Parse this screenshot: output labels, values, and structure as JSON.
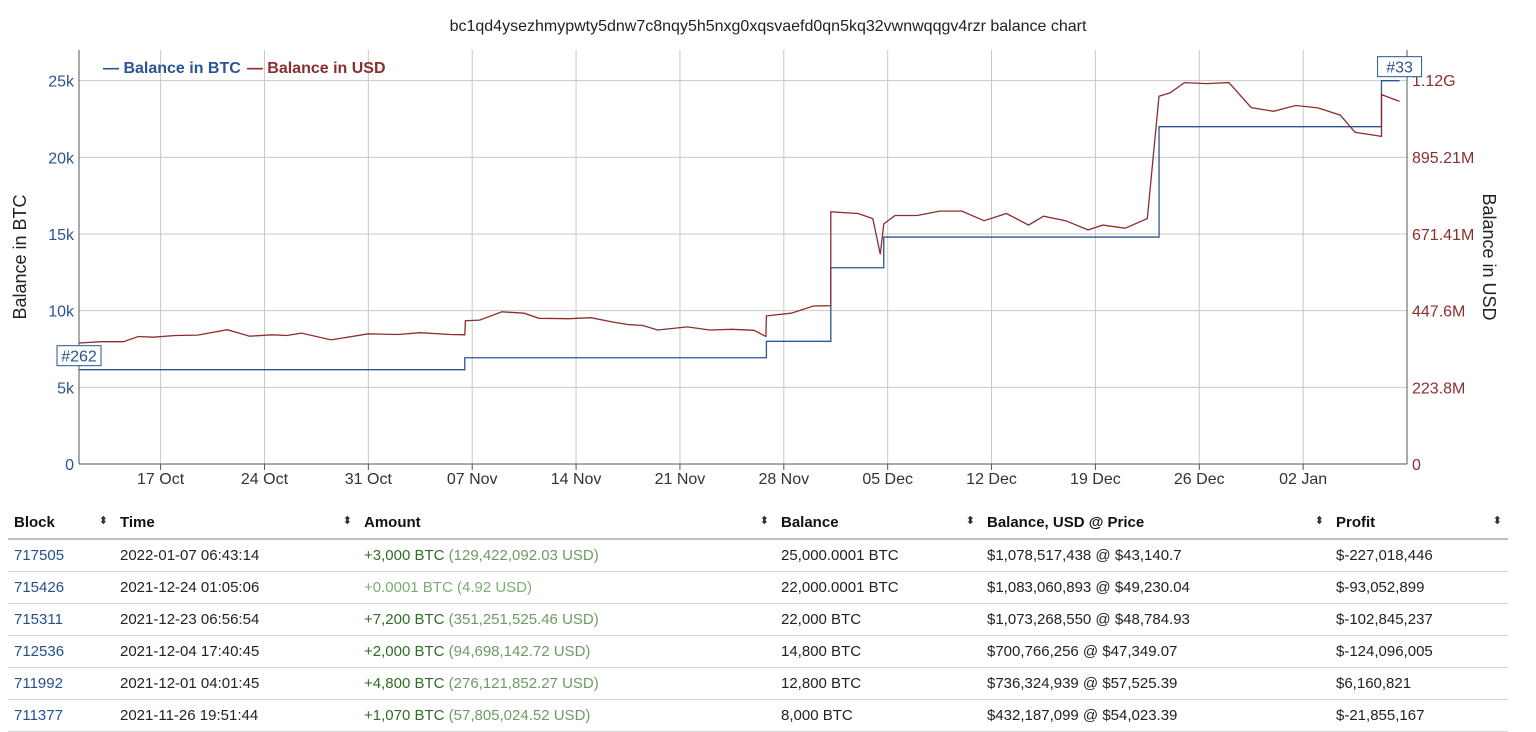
{
  "header": {
    "title": "bc1qd4ysezhmypwty5dnw7c8nqy5h5nxg0xqsvaefd0qn5kq32vwnwqqgv4rzr balance chart"
  },
  "chart_data": {
    "type": "line",
    "title": "bc1qd4ysezhmypwty5dnw7c8nqy5h5nxg0xqsvaefd0qn5kq32vwnwqqgv4rzr balance chart",
    "ylabel": "Balance in BTC",
    "y2label": "Balance in USD",
    "legend_position": "top-left",
    "grid": true,
    "ylim": [
      0,
      27000
    ],
    "y2lim": [
      0,
      1208000000
    ],
    "yticks": [
      "0",
      "5k",
      "10k",
      "15k",
      "20k",
      "25k"
    ],
    "y2ticks": [
      "0",
      "223.8M",
      "447.6M",
      "671.41M",
      "895.21M",
      "1.12G"
    ],
    "xticks": [
      "17 Oct",
      "24 Oct",
      "31 Oct",
      "07 Nov",
      "14 Nov",
      "21 Nov",
      "28 Nov",
      "05 Dec",
      "12 Dec",
      "19 Dec",
      "26 Dec",
      "02 Jan"
    ],
    "xlim": [
      "2021-10-11T12:00",
      "2022-01-09T00:00"
    ],
    "colors": {
      "btc": "#2b5592",
      "usd": "#8b2e2e",
      "grid": "#c8c8c8"
    },
    "series": [
      {
        "name": "Balance in BTC",
        "axis": "left",
        "step": true,
        "points": [
          [
            "2021-10-11T12:00",
            6150
          ],
          [
            "2021-11-06T12:00",
            6930
          ],
          [
            "2021-11-26T19:51",
            8000
          ],
          [
            "2021-12-01T04:01",
            12800
          ],
          [
            "2021-12-04T17:40",
            14800
          ],
          [
            "2021-12-23T06:56",
            22000
          ],
          [
            "2021-12-24T01:05",
            22000.0001
          ],
          [
            "2022-01-07T06:43",
            25000.0001
          ],
          [
            "2022-01-08T12:00",
            25000.0001
          ]
        ]
      },
      {
        "name": "Balance in USD",
        "axis": "right",
        "points": [
          [
            "2021-10-11T12:00",
            353000000
          ],
          [
            "2021-10-13T00:00",
            357000000
          ],
          [
            "2021-10-14T12:00",
            357000000
          ],
          [
            "2021-10-15T12:00",
            372000000
          ],
          [
            "2021-10-16T12:00",
            370000000
          ],
          [
            "2021-10-18T00:00",
            375000000
          ],
          [
            "2021-10-19T12:00",
            376000000
          ],
          [
            "2021-10-21T12:00",
            392000000
          ],
          [
            "2021-10-23T00:00",
            373000000
          ],
          [
            "2021-10-24T12:00",
            377000000
          ],
          [
            "2021-10-25T12:00",
            375000000
          ],
          [
            "2021-10-26T12:00",
            382000000
          ],
          [
            "2021-10-28T12:00",
            362000000
          ],
          [
            "2021-10-31T00:00",
            380000000
          ],
          [
            "2021-11-02T00:00",
            378000000
          ],
          [
            "2021-11-03T12:00",
            383000000
          ],
          [
            "2021-11-05T12:00",
            378000000
          ],
          [
            "2021-11-06T12:00",
            377000000
          ],
          [
            "2021-11-06T13:00",
            418000000
          ],
          [
            "2021-11-07T12:00",
            420000000
          ],
          [
            "2021-11-09T00:00",
            444000000
          ],
          [
            "2021-11-10T12:00",
            440000000
          ],
          [
            "2021-11-11T12:00",
            425000000
          ],
          [
            "2021-11-13T12:00",
            424000000
          ],
          [
            "2021-11-15T00:00",
            427000000
          ],
          [
            "2021-11-16T12:00",
            414000000
          ],
          [
            "2021-11-17T12:00",
            407000000
          ],
          [
            "2021-11-18T12:00",
            404000000
          ],
          [
            "2021-11-19T12:00",
            391000000
          ],
          [
            "2021-11-21T12:00",
            400000000
          ],
          [
            "2021-11-23T00:00",
            391000000
          ],
          [
            "2021-11-24T12:00",
            393000000
          ],
          [
            "2021-11-26T00:00",
            390000000
          ],
          [
            "2021-11-26T19:00",
            372000000
          ],
          [
            "2021-11-26T19:51",
            432000000
          ],
          [
            "2021-11-28T12:00",
            440000000
          ],
          [
            "2021-11-30T00:00",
            461000000
          ],
          [
            "2021-12-01T04:00",
            462000000
          ],
          [
            "2021-12-01T04:01",
            736000000
          ],
          [
            "2021-12-03T00:00",
            731000000
          ],
          [
            "2021-12-04T00:00",
            716000000
          ],
          [
            "2021-12-04T12:00",
            612000000
          ],
          [
            "2021-12-04T17:40",
            701000000
          ],
          [
            "2021-12-05T12:00",
            725000000
          ],
          [
            "2021-12-07T00:00",
            725000000
          ],
          [
            "2021-12-08T12:00",
            738000000
          ],
          [
            "2021-12-10T00:00",
            738000000
          ],
          [
            "2021-12-11T12:00",
            710000000
          ],
          [
            "2021-12-13T00:00",
            731000000
          ],
          [
            "2021-12-14T12:00",
            697000000
          ],
          [
            "2021-12-15T12:00",
            723000000
          ],
          [
            "2021-12-17T00:00",
            710000000
          ],
          [
            "2021-12-18T12:00",
            683000000
          ],
          [
            "2021-12-19T12:00",
            697000000
          ],
          [
            "2021-12-21T00:00",
            688000000
          ],
          [
            "2021-12-22T12:00",
            716000000
          ],
          [
            "2021-12-23T06:56",
            1073000000
          ],
          [
            "2021-12-24T01:05",
            1083000000
          ],
          [
            "2021-12-25T00:00",
            1113000000
          ],
          [
            "2021-12-26T12:00",
            1110000000
          ],
          [
            "2021-12-28T00:00",
            1113000000
          ],
          [
            "2021-12-29T12:00",
            1040000000
          ],
          [
            "2021-12-31T00:00",
            1029000000
          ],
          [
            "2022-01-01T12:00",
            1046000000
          ],
          [
            "2022-01-03T00:00",
            1039000000
          ],
          [
            "2022-01-04T12:00",
            1018000000
          ],
          [
            "2022-01-05T12:00",
            968000000
          ],
          [
            "2022-01-07T06:42",
            956000000
          ],
          [
            "2022-01-07T06:43",
            1078000000
          ],
          [
            "2022-01-08T12:00",
            1058000000
          ]
        ]
      }
    ],
    "annotations": [
      {
        "text": "#262",
        "at": "start"
      },
      {
        "text": "#33",
        "at": "end"
      }
    ]
  },
  "table": {
    "headers": [
      "Block",
      "Time",
      "Amount",
      "Balance",
      "Balance, USD @ Price",
      "Profit"
    ],
    "sort_glyph": "⬍",
    "rows": [
      {
        "block": "717505",
        "time": "2022-01-07 06:43:14",
        "amount": "+3,000 BTC",
        "amount_usd": "(129,422,092.03 USD)",
        "balance": "25,000.0001 BTC",
        "balance_usd": "$1,078,517,438 @ $43,140.7",
        "profit": "$-227,018,446"
      },
      {
        "block": "715426",
        "time": "2021-12-24 01:05:06",
        "amount": "+0.0001 BTC",
        "amount_usd": "(4.92 USD)",
        "balance": "22,000.0001 BTC",
        "balance_usd": "$1,083,060,893 @ $49,230.04",
        "profit": "$-93,052,899"
      },
      {
        "block": "715311",
        "time": "2021-12-23 06:56:54",
        "amount": "+7,200 BTC",
        "amount_usd": "(351,251,525.46 USD)",
        "balance": "22,000 BTC",
        "balance_usd": "$1,073,268,550 @ $48,784.93",
        "profit": "$-102,845,237"
      },
      {
        "block": "712536",
        "time": "2021-12-04 17:40:45",
        "amount": "+2,000 BTC",
        "amount_usd": "(94,698,142.72 USD)",
        "balance": "14,800 BTC",
        "balance_usd": "$700,766,256 @ $47,349.07",
        "profit": "$-124,096,005"
      },
      {
        "block": "711992",
        "time": "2021-12-01 04:01:45",
        "amount": "+4,800 BTC",
        "amount_usd": "(276,121,852.27 USD)",
        "balance": "12,800 BTC",
        "balance_usd": "$736,324,939 @ $57,525.39",
        "profit": "$6,160,821"
      },
      {
        "block": "711377",
        "time": "2021-11-26 19:51:44",
        "amount": "+1,070 BTC",
        "amount_usd": "(57,805,024.52 USD)",
        "balance": "8,000 BTC",
        "balance_usd": "$432,187,099 @ $54,023.39",
        "profit": "$-21,855,167"
      }
    ]
  }
}
